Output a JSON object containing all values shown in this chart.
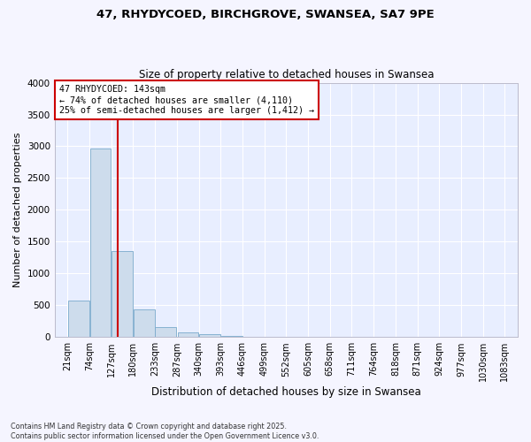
{
  "title_line1": "47, RHYDYCOED, BIRCHGROVE, SWANSEA, SA7 9PE",
  "title_line2": "Size of property relative to detached houses in Swansea",
  "xlabel": "Distribution of detached houses by size in Swansea",
  "ylabel": "Number of detached properties",
  "bar_color": "#cddcec",
  "bar_edge_color": "#7aaacc",
  "bin_edges": [
    21,
    74,
    127,
    180,
    233,
    287,
    340,
    393,
    446,
    499,
    552,
    605,
    658,
    711,
    764,
    818,
    871,
    924,
    977,
    1030,
    1083
  ],
  "bar_heights": [
    580,
    2970,
    1350,
    430,
    155,
    75,
    40,
    15,
    10,
    5,
    3,
    2,
    2,
    1,
    1,
    1,
    0,
    0,
    0,
    0
  ],
  "red_line_x": 143,
  "annotation_title": "47 RHYDYCOED: 143sqm",
  "annotation_line2": "← 74% of detached houses are smaller (4,110)",
  "annotation_line3": "25% of semi-detached houses are larger (1,412) →",
  "annotation_box_facecolor": "#ffffff",
  "annotation_box_edgecolor": "#cc0000",
  "red_line_color": "#cc0000",
  "plot_bg_color": "#e8eeff",
  "fig_bg_color": "#f5f5ff",
  "grid_color": "#ffffff",
  "ylim": [
    0,
    4000
  ],
  "yticks": [
    0,
    500,
    1000,
    1500,
    2000,
    2500,
    3000,
    3500,
    4000
  ],
  "footnote_line1": "Contains HM Land Registry data © Crown copyright and database right 2025.",
  "footnote_line2": "Contains public sector information licensed under the Open Government Licence v3.0."
}
